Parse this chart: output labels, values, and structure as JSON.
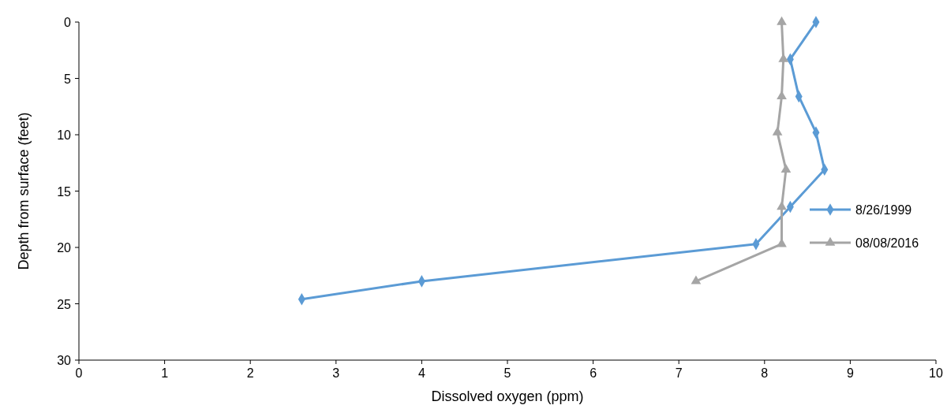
{
  "chart_data": {
    "type": "line",
    "xlabel": "Dissolved oxygen (ppm)",
    "ylabel": "Depth from surface (feet)",
    "xlim": [
      0,
      10
    ],
    "xticks": [
      0,
      1,
      2,
      3,
      4,
      5,
      6,
      7,
      8,
      9,
      10
    ],
    "ylim": [
      30,
      0
    ],
    "yticks": [
      0,
      5,
      10,
      15,
      20,
      25,
      30
    ],
    "grid": false,
    "legend": "right",
    "line_style": "solid",
    "series": [
      {
        "name": "8/26/1999",
        "color": "#5b9bd5",
        "marker": "diamond",
        "x": [
          8.6,
          8.3,
          8.4,
          8.6,
          8.7,
          8.3,
          7.9,
          4.0,
          2.6
        ],
        "values": [
          0,
          3.3,
          6.6,
          9.8,
          13.1,
          16.4,
          19.7,
          23.0,
          24.6
        ]
      },
      {
        "name": "08/08/2016",
        "color": "#a5a5a5",
        "marker": "triangle",
        "x": [
          8.2,
          8.22,
          8.2,
          8.15,
          8.25,
          8.2,
          8.2,
          7.2
        ],
        "values": [
          0,
          3.3,
          6.6,
          9.8,
          13.1,
          16.4,
          19.7,
          23.0
        ]
      }
    ]
  }
}
